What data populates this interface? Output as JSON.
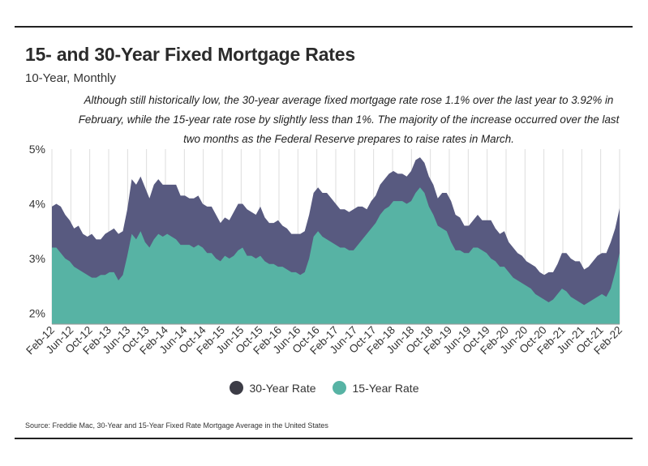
{
  "header": {
    "title": "15- and 30-Year Fixed Mortgage Rates",
    "subtitle": "10-Year, Monthly",
    "note": "Although still historically low, the 30-year average fixed mortgage rate rose 1.1% over the last year to 3.92% in February, while the 15-year rate rose by slightly less than 1%. The majority of the increase occurred over the last two months as the Federal Reserve prepares to raise rates in March."
  },
  "footer": {
    "source": "Source:  Freddie Mac, 30-Year  and 15-Year Fixed Rate Mortgage Average in the United States"
  },
  "colors": {
    "rate30": "#585a80",
    "rate15": "#57b3a4",
    "legend30": "#3c3c46",
    "legend15": "#57b3a4",
    "grid": "#dddddd"
  },
  "chart_data": {
    "type": "area",
    "title": "15- and 30-Year Fixed Mortgage Rates",
    "subtitle": "10-Year, Monthly",
    "ylim": [
      1.8,
      5
    ],
    "yticks": [
      2,
      3,
      4,
      5
    ],
    "ytick_labels": [
      "2%",
      "3%",
      "4%",
      "5%"
    ],
    "grid": "vertical lines at each x tick",
    "legend_position": "bottom-center",
    "x_tick_labels": [
      "Feb-12",
      "Jun-12",
      "Oct-12",
      "Feb-13",
      "Jun-13",
      "Oct-13",
      "Feb-14",
      "Jun-14",
      "Oct-14",
      "Feb-15",
      "Jun-15",
      "Oct-15",
      "Feb-16",
      "Jun-16",
      "Oct-16",
      "Feb-17",
      "Jun-17",
      "Oct-17",
      "Feb-18",
      "Jun-18",
      "Oct-18",
      "Feb-19",
      "Jun-19",
      "Oct-19",
      "Feb-20",
      "Jun-20",
      "Oct-20",
      "Feb-21",
      "Jun-21",
      "Oct-21",
      "Feb-22"
    ],
    "x_start": "Feb-12",
    "x_end": "Feb-22",
    "series": [
      {
        "name": "30-Year Rate",
        "values": [
          3.95,
          4.0,
          3.95,
          3.8,
          3.7,
          3.55,
          3.6,
          3.45,
          3.4,
          3.45,
          3.35,
          3.35,
          3.45,
          3.5,
          3.55,
          3.45,
          3.5,
          3.9,
          4.45,
          4.35,
          4.5,
          4.3,
          4.1,
          4.35,
          4.45,
          4.35,
          4.35,
          4.35,
          4.35,
          4.15,
          4.15,
          4.1,
          4.1,
          4.15,
          4.0,
          3.95,
          3.95,
          3.8,
          3.65,
          3.75,
          3.7,
          3.85,
          4.0,
          4.0,
          3.9,
          3.85,
          3.8,
          3.95,
          3.75,
          3.65,
          3.65,
          3.7,
          3.6,
          3.55,
          3.45,
          3.45,
          3.45,
          3.5,
          3.8,
          4.2,
          4.3,
          4.2,
          4.2,
          4.1,
          4.0,
          3.9,
          3.9,
          3.85,
          3.9,
          3.95,
          3.95,
          3.9,
          4.05,
          4.15,
          4.35,
          4.45,
          4.55,
          4.6,
          4.55,
          4.55,
          4.5,
          4.6,
          4.8,
          4.85,
          4.75,
          4.5,
          4.35,
          4.1,
          4.2,
          4.2,
          4.05,
          3.8,
          3.75,
          3.6,
          3.6,
          3.7,
          3.8,
          3.7,
          3.7,
          3.7,
          3.55,
          3.45,
          3.5,
          3.3,
          3.2,
          3.1,
          3.05,
          2.95,
          2.9,
          2.85,
          2.75,
          2.7,
          2.75,
          2.75,
          2.9,
          3.1,
          3.1,
          3.0,
          2.95,
          2.95,
          2.8,
          2.85,
          2.95,
          3.05,
          3.1,
          3.1,
          3.3,
          3.55,
          3.92
        ]
      },
      {
        "name": "15-Year Rate",
        "values": [
          3.2,
          3.2,
          3.1,
          3.0,
          2.95,
          2.85,
          2.8,
          2.75,
          2.7,
          2.65,
          2.65,
          2.7,
          2.7,
          2.75,
          2.75,
          2.6,
          2.7,
          3.05,
          3.45,
          3.35,
          3.5,
          3.3,
          3.2,
          3.35,
          3.45,
          3.4,
          3.45,
          3.4,
          3.35,
          3.25,
          3.25,
          3.25,
          3.2,
          3.25,
          3.2,
          3.1,
          3.1,
          3.0,
          2.95,
          3.05,
          3.0,
          3.05,
          3.15,
          3.2,
          3.05,
          3.05,
          3.0,
          3.05,
          2.95,
          2.9,
          2.9,
          2.85,
          2.85,
          2.8,
          2.75,
          2.75,
          2.7,
          2.75,
          3.0,
          3.4,
          3.5,
          3.4,
          3.35,
          3.3,
          3.25,
          3.2,
          3.2,
          3.15,
          3.15,
          3.25,
          3.35,
          3.45,
          3.55,
          3.65,
          3.8,
          3.9,
          3.95,
          4.05,
          4.05,
          4.05,
          4.0,
          4.05,
          4.2,
          4.3,
          4.2,
          3.95,
          3.8,
          3.6,
          3.55,
          3.5,
          3.3,
          3.15,
          3.15,
          3.1,
          3.1,
          3.2,
          3.2,
          3.15,
          3.1,
          3.0,
          2.95,
          2.85,
          2.85,
          2.75,
          2.65,
          2.6,
          2.55,
          2.5,
          2.45,
          2.35,
          2.3,
          2.25,
          2.2,
          2.25,
          2.35,
          2.45,
          2.4,
          2.3,
          2.25,
          2.2,
          2.15,
          2.2,
          2.25,
          2.3,
          2.35,
          2.3,
          2.45,
          2.75,
          3.1
        ]
      }
    ]
  }
}
